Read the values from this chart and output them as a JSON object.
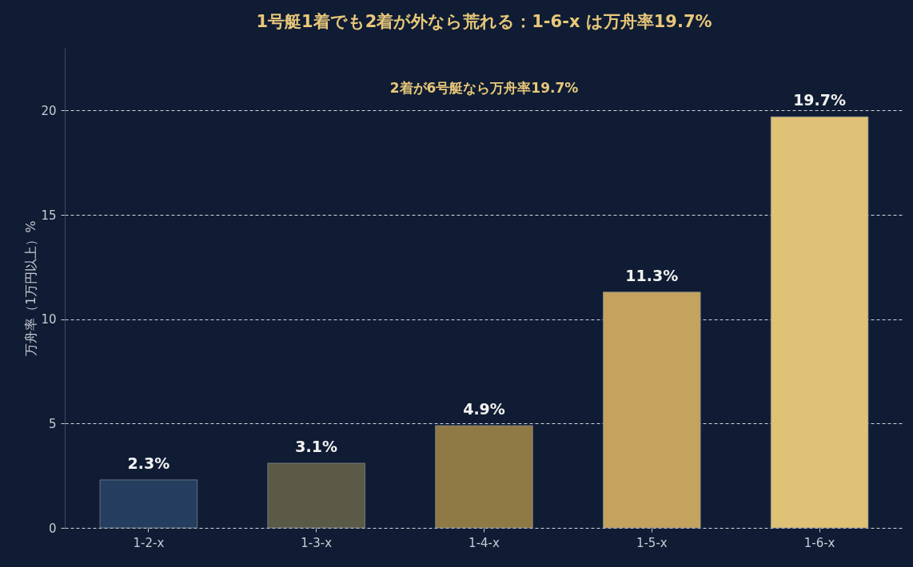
{
  "chart_data": {
    "type": "bar",
    "title": "1号艇1着でも2着が外なら荒れる：1-6-x は万舟率19.7%",
    "ylabel": "万舟率（1万円以上）%",
    "categories": [
      "1-2-x",
      "1-3-x",
      "1-4-x",
      "1-5-x",
      "1-6-x"
    ],
    "values": [
      2.3,
      3.1,
      4.9,
      11.3,
      19.7
    ],
    "colors": [
      "#253d5e",
      "#5b5a47",
      "#8f7a45",
      "#c4a35f",
      "#e0c277"
    ],
    "value_labels": [
      "2.3%",
      "3.1%",
      "4.9%",
      "11.3%",
      "19.7%"
    ],
    "annotations": [
      "2着が6号艇なら万舟率19.7%"
    ],
    "ylim": [
      0,
      23
    ],
    "yticks": [
      0,
      5,
      10,
      15,
      20
    ],
    "grid": "y",
    "legend": false
  }
}
